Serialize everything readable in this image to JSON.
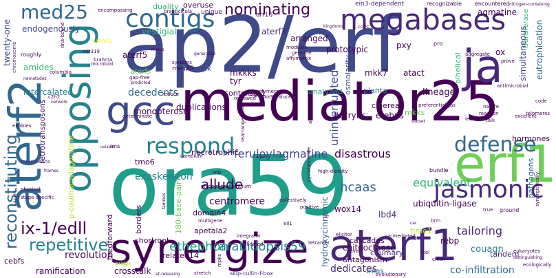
{
  "palette": {
    "dark_purple": "#440154",
    "purple": "#482878",
    "indigo": "#3e4a89",
    "blue": "#31688e",
    "teal_blue": "#26828e",
    "teal": "#1f9e89",
    "green": "#35b779",
    "light_green": "#6ece58",
    "yellow_green": "#b5de2b",
    "yellow": "#fde725"
  },
  "words": {
    "ap2_erf": "ap2/erf",
    "ora59": "ora59",
    "mediator25": "mediator25",
    "synergize": "synergize",
    "aterf1": "aterf1",
    "aterf2": "aterf2",
    "opposing": "opposing",
    "erf1": "erf1",
    "ja": "ja",
    "gcc": "gcc",
    "megabases": "megabases",
    "contigs": "contigs",
    "defense": "defense",
    "jasmonic": "jasmonic",
    "respond": "respond",
    "nominating": "nominating",
    "med25": "med25",
    "reconstituting": "reconstituting",
    "repetitive": "repetitive",
    "ix1_edll": "ix-1/edll",
    "arabidopsis59": "arabidopsis59",
    "ethephon": "ethephon",
    "allude": "allude",
    "disastrous": "disastrous",
    "feruloylagmatine": "feruloylagmatine",
    "uninterrupted": "uninterrupted",
    "hcaas": "hcaas",
    "centromere": "centromere",
    "exoskeleton": "exoskeleton",
    "equivalent": "equivalent",
    "tailoring": "tailoring",
    "revolution": "revolution",
    "ramification": "ramification",
    "crosstalk": "crosstalk",
    "co_infiltration": "co-infiltration",
    "dedicates": "dedicates",
    "couagn": "couagn",
    "agmatine": "agmatine",
    "transferase": "transferase",
    "eutrophication": "eutrophication",
    "simultaneous": "simultaneous",
    "twenty_one": "twenty-one",
    "endogenously": "endogenously",
    "duality": "duality",
    "vestigial": "vestigial",
    "overuse": "overuse",
    "arranged": "arranged",
    "aterf3": "aterf3",
    "aterf5": "aterf5",
    "aterfs": "aterfs",
    "amides": "amides",
    "intercalated": "intercalated",
    "decedents": "decedents",
    "monopteros6": "monopteros6",
    "tmo6": "tmo6",
    "retrotransposons": "retrotransposons",
    "p_coumaroylagmatine": "p-coumaroylagmatine",
    "mkk_mpk": "mkk-mpk",
    "mkkks": "mkkks",
    "tyr": "tyr",
    "duplications": "duplications",
    "contexts": "contexts",
    "sgt1": "sgt1",
    "necrotrophic": "necrotrophic",
    "prototypic": "prototypic",
    "mkk7": "mkk7",
    "pxy": "pxy",
    "atact": "atact",
    "osmolarity": "osmolarity",
    "analyzed": "analyzed",
    "planta": "planta",
    "cinerea": "cinerea",
    "botrytis": "botrytis",
    "erebps": "erebps",
    "mkks": "mkks",
    "lineage": "lineage",
    "bihelical": "bihelical",
    "hormones": "hormones",
    "pathogens": "pathogens",
    "ubiquitin_ligase": "ubiquitin-ligase",
    "lbd4": "lbd4",
    "wox14": "wox14",
    "domain4": "domain4",
    "apetala2": "apetala2",
    "related14": "related14",
    "shortroot": "shortroot",
    "feedforward": "feedforward",
    "borders": "borders",
    "hydroxycinnamic": "hydroxycinnamic",
    "cascades": "cascades",
    "time1": "time1",
    "chitooctaose": "chitooctaose",
    "rebp": "rebp",
    "coumaryl": "coumaryl",
    "antagonism": "antagonism",
    "trnas": "trnas",
    "tandem": "tandem",
    "cebfs": "cebfs",
    "bp180": "180-base-pair",
    "med25_small": "med25",
    "arr16": "arr16",
    "ein3_dependent": "ein3-dependent",
    "recognizable": "recognizable",
    "encountered": "encountered",
    "nitrogen_containing": "nitrogen-containing",
    "encompassing": "encompassing",
    "brassicicola": "brassicicola",
    "unique": "unique",
    "chromosome": "chromosome",
    "dna_bound": "dna-bound",
    "salinity": "salinity",
    "roughly": "roughly",
    "mir319": "mir319",
    "brahma": "brahma",
    "marks": "marks",
    "systems": "systems",
    "affymetrix": "affymetrix",
    "modules": "modules",
    "genome": "genome",
    "pro": "pro",
    "ox": "ox",
    "aggregate": "aggregate",
    "prove": "prove",
    "antimicrobial": "antimicrobial",
    "columbia": "columbia",
    "nematodes": "nematodes",
    "gap_free": "gap-free",
    "predicted": "predicted",
    "reduce": "reduce",
    "c2h2": "c2h2",
    "network": "network",
    "enables": "enables",
    "polymerase": "polymerase",
    "mkk9_induced": "mkk9-induced",
    "reviewed": "reviewed",
    "preferentially": "preferentially",
    "code": "code",
    "telomeres": "telomeres",
    "excellent": "excellent",
    "reaction": "reaction",
    "talk": "talk",
    "nature": "nature",
    "alternaria": "alternaria",
    "leu": "leu",
    "transposons": "transposons",
    "trna": "trna",
    "isolated": "isolated",
    "frames": "frames",
    "physical": "physical",
    "stage_specific": "stage-specific",
    "salicylic": "salicylic",
    "families": "families",
    "phloem_procambium": "phloem-procambium",
    "high_density": "high-density",
    "cycloheximide": "cycloheximide",
    "multigene": "multigene",
    "collectively": "collectively",
    "positive": "positive",
    "bundle": "bundle",
    "true": "true",
    "ground": "ground",
    "synergistically": "synergistically",
    "integrator": "integrator",
    "validated": "validated",
    "elicitor": "elicitor",
    "sa_mediated": "sa-mediated",
    "favor": "favor",
    "brm": "brm",
    "eukaryotes": "eukaryotes",
    "distinguishing": "distinguishing",
    "ecologically": "ecologically",
    "chitin": "chitin",
    "evolutionary": "evolutionary",
    "skip_cullin_f_box": "skip-cullin-f-box",
    "mpks": "mpks",
    "bridge": "bridge",
    "stretch": "stretch",
    "et_releasing": "et-releasing",
    "determinate": "determinate",
    "cambium": "cambium",
    "subset": "subset",
    "eil1": "eil1",
    "mb": "mb",
    "generated": "generated",
    "kingdoms": "kingdoms",
    "rearrangement": "rearrangement",
    "ccdC": "ccdC",
    "tetramer": "tetramer",
    "microbial": "microbial",
    "agent": "agent",
    "jas": "jas",
    "cel": "cel",
    "car": "car",
    "brr": "brr"
  }
}
